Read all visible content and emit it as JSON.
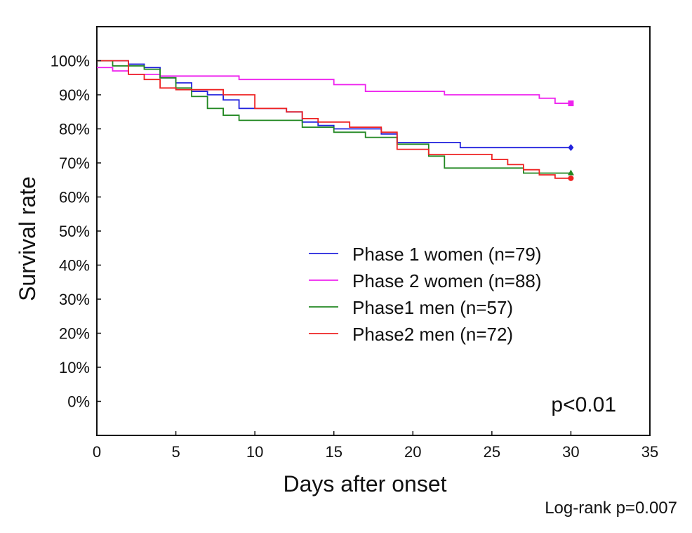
{
  "chart_data": {
    "type": "line",
    "step": true,
    "title": "",
    "xlabel": "Days after onset",
    "ylabel": "Survival rate",
    "xlim": [
      0,
      35
    ],
    "ylim": [
      -10,
      110
    ],
    "xticks": [
      0,
      5,
      10,
      15,
      20,
      25,
      30,
      35
    ],
    "yticks": [
      0,
      10,
      20,
      30,
      40,
      50,
      60,
      70,
      80,
      90,
      100
    ],
    "ytick_labels": [
      "0%",
      "10%",
      "20%",
      "30%",
      "40%",
      "50%",
      "60%",
      "70%",
      "80%",
      "90%",
      "100%"
    ],
    "legend_position": "center-right",
    "series": [
      {
        "name": "Phase 1 women (n=79)",
        "color": "#2222dd",
        "marker": "diamond",
        "points": [
          [
            0,
            100
          ],
          [
            2,
            100
          ],
          [
            2,
            99
          ],
          [
            3,
            99
          ],
          [
            3,
            98
          ],
          [
            4,
            98
          ],
          [
            4,
            95
          ],
          [
            5,
            95
          ],
          [
            5,
            93.5
          ],
          [
            6,
            93.5
          ],
          [
            6,
            91
          ],
          [
            7,
            91
          ],
          [
            7,
            90
          ],
          [
            8,
            90
          ],
          [
            8,
            88.5
          ],
          [
            9,
            88.5
          ],
          [
            9,
            86
          ],
          [
            12,
            86
          ],
          [
            12,
            85
          ],
          [
            13,
            85
          ],
          [
            13,
            82
          ],
          [
            14,
            82
          ],
          [
            14,
            81
          ],
          [
            15,
            81
          ],
          [
            15,
            80
          ],
          [
            18,
            80
          ],
          [
            18,
            78.5
          ],
          [
            19,
            78.5
          ],
          [
            19,
            76
          ],
          [
            23,
            76
          ],
          [
            23,
            74.5
          ],
          [
            30,
            74.5
          ]
        ]
      },
      {
        "name": "Phase 2 women (n=88)",
        "color": "#ee22ee",
        "marker": "square",
        "points": [
          [
            0,
            98
          ],
          [
            1,
            98
          ],
          [
            1,
            97
          ],
          [
            2,
            97
          ],
          [
            2,
            96
          ],
          [
            4,
            96
          ],
          [
            4,
            95.5
          ],
          [
            9,
            95.5
          ],
          [
            9,
            94.5
          ],
          [
            15,
            94.5
          ],
          [
            15,
            93
          ],
          [
            17,
            93
          ],
          [
            17,
            91
          ],
          [
            22,
            91
          ],
          [
            22,
            90
          ],
          [
            28,
            90
          ],
          [
            28,
            89
          ],
          [
            29,
            89
          ],
          [
            29,
            87.5
          ],
          [
            30,
            87.5
          ]
        ]
      },
      {
        "name": "Phase1 men (n=57)",
        "color": "#228822",
        "marker": "triangle",
        "points": [
          [
            0,
            100
          ],
          [
            1,
            100
          ],
          [
            1,
            98.5
          ],
          [
            3,
            98.5
          ],
          [
            3,
            97.5
          ],
          [
            4,
            97.5
          ],
          [
            4,
            95
          ],
          [
            5,
            95
          ],
          [
            5,
            92
          ],
          [
            6,
            92
          ],
          [
            6,
            89.5
          ],
          [
            7,
            89.5
          ],
          [
            7,
            86
          ],
          [
            8,
            86
          ],
          [
            8,
            84
          ],
          [
            9,
            84
          ],
          [
            9,
            82.5
          ],
          [
            13,
            82.5
          ],
          [
            13,
            80.5
          ],
          [
            15,
            80.5
          ],
          [
            15,
            79
          ],
          [
            17,
            79
          ],
          [
            17,
            77.5
          ],
          [
            19,
            77.5
          ],
          [
            19,
            75.5
          ],
          [
            21,
            75.5
          ],
          [
            21,
            72
          ],
          [
            22,
            72
          ],
          [
            22,
            68.5
          ],
          [
            27,
            68.5
          ],
          [
            27,
            67
          ],
          [
            30,
            67
          ]
        ]
      },
      {
        "name": "Phase2 men (n=72)",
        "color": "#ee2222",
        "marker": "circle",
        "points": [
          [
            0,
            100
          ],
          [
            2,
            100
          ],
          [
            2,
            96
          ],
          [
            3,
            96
          ],
          [
            3,
            94.5
          ],
          [
            4,
            94.5
          ],
          [
            4,
            92
          ],
          [
            5,
            92
          ],
          [
            5,
            91.5
          ],
          [
            8,
            91.5
          ],
          [
            8,
            90
          ],
          [
            10,
            90
          ],
          [
            10,
            86
          ],
          [
            12,
            86
          ],
          [
            12,
            85
          ],
          [
            13,
            85
          ],
          [
            13,
            83
          ],
          [
            14,
            83
          ],
          [
            14,
            82
          ],
          [
            16,
            82
          ],
          [
            16,
            80.5
          ],
          [
            18,
            80.5
          ],
          [
            18,
            79
          ],
          [
            19,
            79
          ],
          [
            19,
            74
          ],
          [
            21,
            74
          ],
          [
            21,
            72.5
          ],
          [
            25,
            72.5
          ],
          [
            25,
            71
          ],
          [
            26,
            71
          ],
          [
            26,
            69.5
          ],
          [
            27,
            69.5
          ],
          [
            27,
            68
          ],
          [
            28,
            68
          ],
          [
            28,
            66.5
          ],
          [
            29,
            66.5
          ],
          [
            29,
            65.5
          ],
          [
            30,
            65.5
          ]
        ]
      }
    ],
    "annotations": [
      "p<0.01",
      "Log-rank p=0.007"
    ]
  }
}
